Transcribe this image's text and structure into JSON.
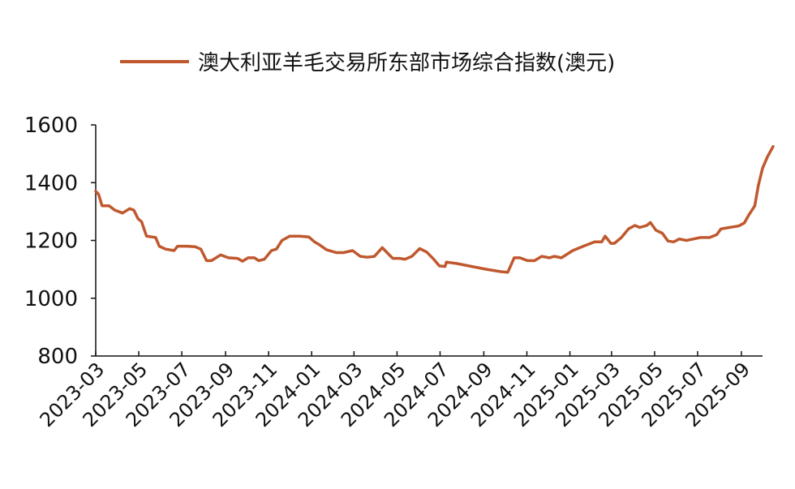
{
  "chart_data": {
    "type": "line",
    "legend_position": "top",
    "grid": false,
    "title": "",
    "xlabel": "",
    "ylabel": "",
    "ylim": [
      800,
      1600
    ],
    "yticks": [
      "1600",
      "1400",
      "1200",
      "1000",
      "800"
    ],
    "xlim": [
      "2023-03",
      "2025-10"
    ],
    "xticks": [
      "2023-03",
      "2023-05",
      "2023-07",
      "2023-09",
      "2023-11",
      "2024-01",
      "2024-03",
      "2024-05",
      "2024-07",
      "2024-09",
      "2024-11",
      "2025-01",
      "2025-03",
      "2025-05",
      "2025-07",
      "2025-09"
    ],
    "series": [
      {
        "name": "澳大利亚羊毛交易所东部市场综合指数(澳元)",
        "color": "#c0582e",
        "points": [
          [
            "2023-03-01",
            1370
          ],
          [
            "2023-03-05",
            1360
          ],
          [
            "2023-03-10",
            1320
          ],
          [
            "2023-03-20",
            1320
          ],
          [
            "2023-03-28",
            1305
          ],
          [
            "2023-04-08",
            1295
          ],
          [
            "2023-04-18",
            1310
          ],
          [
            "2023-04-24",
            1305
          ],
          [
            "2023-04-30",
            1275
          ],
          [
            "2023-05-05",
            1265
          ],
          [
            "2023-05-12",
            1215
          ],
          [
            "2023-05-25",
            1210
          ],
          [
            "2023-05-30",
            1180
          ],
          [
            "2023-06-08",
            1170
          ],
          [
            "2023-06-20",
            1165
          ],
          [
            "2023-06-25",
            1180
          ],
          [
            "2023-07-08",
            1180
          ],
          [
            "2023-07-20",
            1178
          ],
          [
            "2023-07-28",
            1170
          ],
          [
            "2023-08-05",
            1130
          ],
          [
            "2023-08-12",
            1130
          ],
          [
            "2023-08-25",
            1150
          ],
          [
            "2023-09-05",
            1140
          ],
          [
            "2023-09-18",
            1138
          ],
          [
            "2023-09-25",
            1128
          ],
          [
            "2023-10-03",
            1140
          ],
          [
            "2023-10-12",
            1140
          ],
          [
            "2023-10-18",
            1130
          ],
          [
            "2023-10-26",
            1135
          ],
          [
            "2023-11-05",
            1165
          ],
          [
            "2023-11-12",
            1170
          ],
          [
            "2023-11-20",
            1200
          ],
          [
            "2023-12-01",
            1215
          ],
          [
            "2023-12-15",
            1215
          ],
          [
            "2023-12-28",
            1212
          ],
          [
            "2024-01-05",
            1195
          ],
          [
            "2024-01-12",
            1185
          ],
          [
            "2024-01-22",
            1168
          ],
          [
            "2024-02-05",
            1158
          ],
          [
            "2024-02-15",
            1158
          ],
          [
            "2024-02-28",
            1165
          ],
          [
            "2024-03-10",
            1145
          ],
          [
            "2024-03-20",
            1142
          ],
          [
            "2024-03-30",
            1145
          ],
          [
            "2024-04-10",
            1175
          ],
          [
            "2024-04-18",
            1155
          ],
          [
            "2024-04-25",
            1138
          ],
          [
            "2024-05-05",
            1138
          ],
          [
            "2024-05-12",
            1135
          ],
          [
            "2024-05-22",
            1145
          ],
          [
            "2024-06-02",
            1172
          ],
          [
            "2024-06-12",
            1160
          ],
          [
            "2024-06-22",
            1135
          ],
          [
            "2024-06-30",
            1112
          ],
          [
            "2024-07-08",
            1110
          ],
          [
            "2024-07-10",
            1125
          ],
          [
            "2024-07-25",
            1120
          ],
          [
            "2024-08-15",
            1110
          ],
          [
            "2024-09-05",
            1100
          ],
          [
            "2024-09-25",
            1092
          ],
          [
            "2024-10-05",
            1090
          ],
          [
            "2024-10-14",
            1140
          ],
          [
            "2024-10-22",
            1140
          ],
          [
            "2024-11-02",
            1130
          ],
          [
            "2024-11-12",
            1130
          ],
          [
            "2024-11-22",
            1145
          ],
          [
            "2024-12-03",
            1140
          ],
          [
            "2024-12-10",
            1145
          ],
          [
            "2024-12-20",
            1140
          ],
          [
            "2025-01-05",
            1165
          ],
          [
            "2025-01-20",
            1180
          ],
          [
            "2025-02-05",
            1195
          ],
          [
            "2025-02-15",
            1195
          ],
          [
            "2025-02-20",
            1215
          ],
          [
            "2025-02-28",
            1190
          ],
          [
            "2025-03-05",
            1190
          ],
          [
            "2025-03-15",
            1210
          ],
          [
            "2025-03-25",
            1240
          ],
          [
            "2025-04-03",
            1252
          ],
          [
            "2025-04-10",
            1245
          ],
          [
            "2025-04-20",
            1252
          ],
          [
            "2025-04-25",
            1262
          ],
          [
            "2025-05-03",
            1235
          ],
          [
            "2025-05-12",
            1225
          ],
          [
            "2025-05-20",
            1198
          ],
          [
            "2025-05-28",
            1195
          ],
          [
            "2025-06-05",
            1205
          ],
          [
            "2025-06-15",
            1200
          ],
          [
            "2025-06-25",
            1205
          ],
          [
            "2025-07-05",
            1210
          ],
          [
            "2025-07-18",
            1210
          ],
          [
            "2025-07-28",
            1220
          ],
          [
            "2025-08-03",
            1240
          ],
          [
            "2025-08-15",
            1245
          ],
          [
            "2025-08-28",
            1250
          ],
          [
            "2025-09-05",
            1260
          ],
          [
            "2025-09-12",
            1290
          ],
          [
            "2025-09-20",
            1320
          ],
          [
            "2025-09-25",
            1390
          ],
          [
            "2025-10-01",
            1450
          ],
          [
            "2025-10-08",
            1490
          ],
          [
            "2025-10-16",
            1525
          ]
        ]
      }
    ]
  }
}
